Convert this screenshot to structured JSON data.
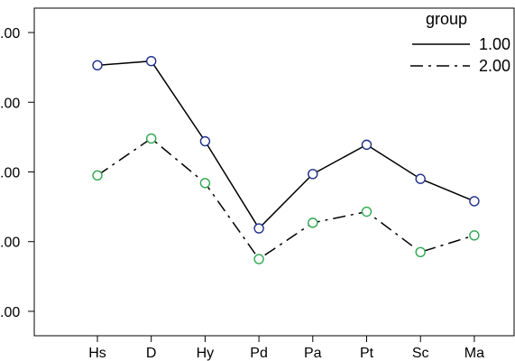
{
  "chart_data": {
    "type": "line",
    "categories": [
      "Hs",
      "D",
      "Hy",
      "Pd",
      "Pa",
      "Pt",
      "Sc",
      "Ma"
    ],
    "y_tick_labels": [
      ".00",
      ".00",
      ".00",
      ".00",
      ".00"
    ],
    "y_ticks": [
      50,
      60,
      70,
      80,
      90
    ],
    "ylim": [
      46.5,
      93.5
    ],
    "legend": {
      "title": "group",
      "position": "top-right"
    },
    "series": [
      {
        "name": "1.00",
        "values": [
          85.3,
          85.9,
          74.4,
          61.9,
          69.7,
          73.9,
          69.0,
          65.8
        ],
        "color": "#1e2e8c",
        "line_color": "#000000",
        "dash": ""
      },
      {
        "name": "2.00",
        "values": [
          69.5,
          74.8,
          68.4,
          57.5,
          62.7,
          64.3,
          58.5,
          60.9
        ],
        "color": "#2fa84f",
        "line_color": "#000000",
        "dash": "14 6 3 6"
      }
    ],
    "grid": false
  }
}
